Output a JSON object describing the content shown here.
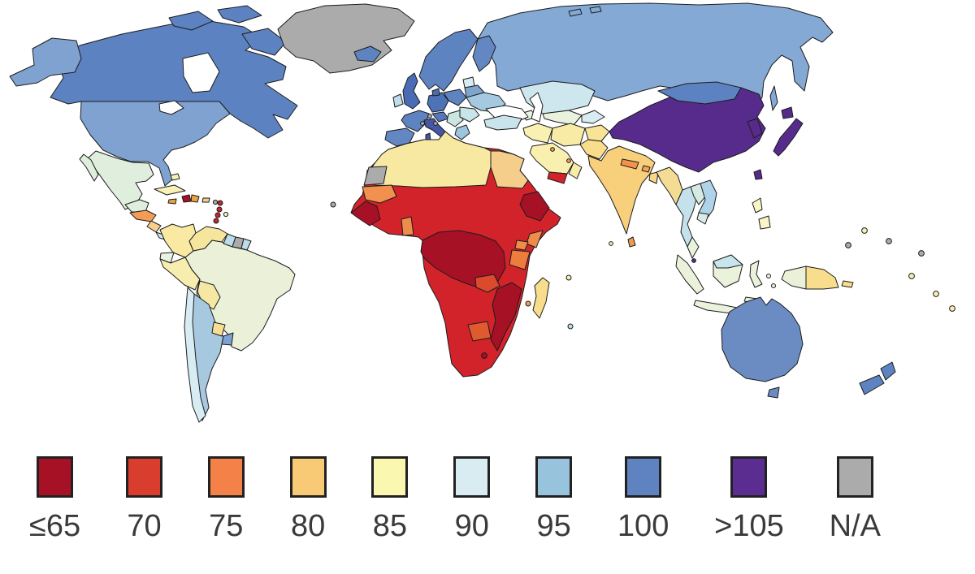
{
  "figure": {
    "title": "World choropleth map with legend",
    "background": "#FFFFFF"
  },
  "legend": {
    "items": [
      {
        "label": "≤65",
        "color": "#A61126"
      },
      {
        "label": "70",
        "color": "#D83D2D"
      },
      {
        "label": "75",
        "color": "#F48148"
      },
      {
        "label": "80",
        "color": "#F9CA76"
      },
      {
        "label": "85",
        "color": "#FAF7B0"
      },
      {
        "label": "90",
        "color": "#D8ECF2"
      },
      {
        "label": "95",
        "color": "#97C3DD"
      },
      {
        "label": "100",
        "color": "#5F83C1"
      },
      {
        "label": ">105",
        "color": "#5B2D90"
      },
      {
        "label": "N/A",
        "color": "#ABABAB"
      }
    ]
  },
  "map": {
    "ocean": "#FFFFFF",
    "border_color": "#1C1C1C",
    "regions": {
      "greenland": "#ABABAB",
      "canada": "#5D82C1",
      "usa": "#7FA2D0",
      "mexico": "#E0EEDD",
      "guatemala-honduras": "#F49C54",
      "nicaragua": "#F8CE8C",
      "costa-rica-panama": "#D5EAF0",
      "cuba": "#F9F2B8",
      "bahamas": "#F9F2B8",
      "jamaica": "#EAA243",
      "haiti": "#A61126",
      "dominican-republic": "#EAA243",
      "puerto-rico": "#F8CE8C",
      "lesser-antilles": "#C1272D",
      "antilles-gray": "#ABABAB",
      "antilles-yellow": "#F9F2B8",
      "colombia": "#F9E9A2",
      "venezuela": "#F6E59C",
      "guyana": "#BBDCE8",
      "suriname": "#ABABAB",
      "french-guiana": "#BBDCE8",
      "ecuador": "#EAF2E0",
      "peru": "#F7EDAF",
      "brazil": "#EAF1D8",
      "bolivia": "#F6E8A4",
      "paraguay": "#F7DE92",
      "chile": "#D8ECF3",
      "argentina": "#A7C9DF",
      "uruguay": "#7BA2D1",
      "iceland": "#5E83C1",
      "uk": "#4A6CB5",
      "ireland": "#BEDEE9",
      "scandinavia": "#5E83C1",
      "finland": "#6287C3",
      "denmark": "#4A6CB5",
      "germany": "#4D72B8",
      "france": "#5E83C1",
      "iberia": "#6287C3",
      "italy": "#4456A5",
      "poland-czechia": "#5E83C1",
      "austria": "#5577BC",
      "baltics": "#D8EDF2",
      "belarus": "#7FA5CE",
      "ukraine": "#A6C9E2",
      "romania-bulgaria": "#C8E5E9",
      "balkans": "#CBE6DF",
      "greece": "#9CC6DE",
      "europe-microstates": "#ABABAB",
      "russia": "#84A9D4",
      "kazakhstan": "#CEE7EE",
      "uzbekistan-turkmenistan": "#E9F2DE",
      "kyrgyzstan-tajikistan": "#D8ECF2",
      "caucasus": "#E9F2DE",
      "turkey": "#C9E5EB",
      "levant-iraq": "#F8F1B2",
      "saudi-arabia": "#F9F0B0",
      "yemen": "#D2232A",
      "oman": "#F7EDA6",
      "gulf-states": "#F0A050",
      "iran": "#F7EBA6",
      "afghanistan": "#F8E496",
      "pakistan": "#F9DC8C",
      "india": "#F8D07B",
      "nepal": "#F3924D",
      "bhutan": "#F3A55A",
      "bangladesh": "#F8D888",
      "sri-lanka": "#F09A4E",
      "maldives": "#F9F0B0",
      "china": "#572B8C",
      "mongolia": "#5D82C1",
      "korea": "#572B8C",
      "japan": "#572B8C",
      "taiwan": "#572B8C",
      "myanmar": "#F5DC94",
      "thailand": "#C5E2EC",
      "laos": "#D5EBE2",
      "vietnam": "#AFD3E8",
      "cambodia": "#D9EDE6",
      "malaysia": "#E9F2DC",
      "singapore": "#572B8C",
      "indonesia": "#EBF2DC",
      "borneo-malaysia": "#C8E4EC",
      "philippines": "#F8F5C8",
      "png-west": "#EAF1D8",
      "png-east": "#F8DE8C",
      "new-britain": "#F8DE8C",
      "australia": "#6B8CC3",
      "tasmania": "#6B8CC3",
      "new-zealand": "#5E83C1",
      "pacific-gray": "#ABABAB",
      "pacific-yellow": "#F9F0B0",
      "africa-base": "#D2232A",
      "north-africa": "#F7E9A2",
      "egypt": "#F5CE8C",
      "western-sahara": "#ABABAB",
      "mauritania": "#F29050",
      "senegal-guinea": "#A61126",
      "ghana": "#F08C4B",
      "central-africa": "#A61126",
      "ethiopia": "#A61126",
      "kenya": "#F08C4B",
      "tanzania": "#EE7C3C",
      "uganda": "#F08C4B",
      "zambia": "#DC4A2E",
      "mozambique-zimbabwe": "#A61126",
      "botswana": "#E05A30",
      "lesotho": "#A61126",
      "madagascar": "#F8DE8C",
      "cape-verde": "#ABABAB",
      "seychelles": "#F9F0B0",
      "comoros": "#F0A050",
      "mauritius": "#BBDCE8"
    }
  }
}
